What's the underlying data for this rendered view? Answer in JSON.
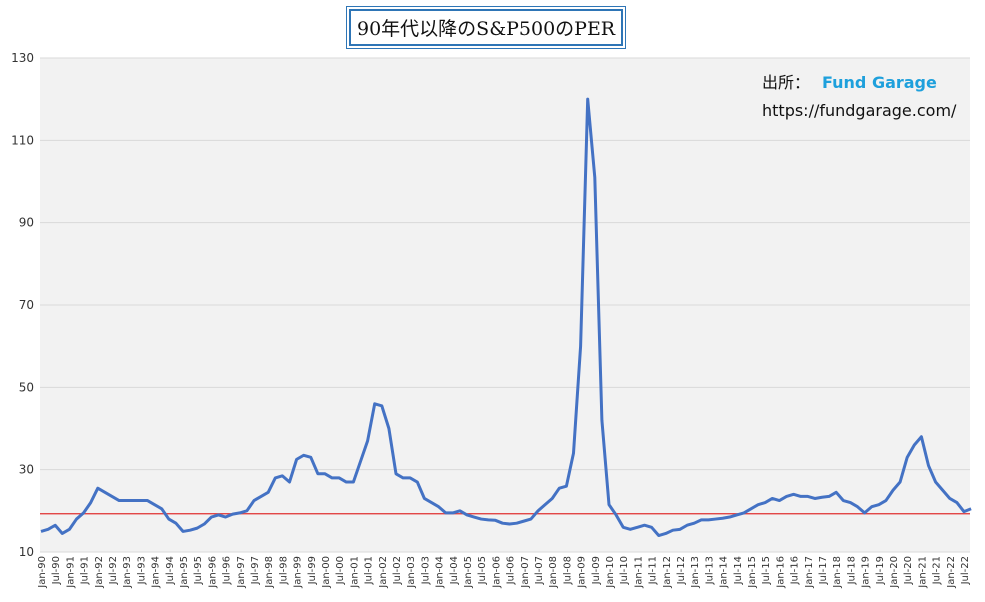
{
  "chart_data": {
    "type": "line",
    "title": "90年代以降のS&P500のPER",
    "annotation_source_label": "出所：",
    "annotation_source_name": "Fund Garage",
    "annotation_url": "https://fundgarage.com/",
    "categories": [
      "Jan-90",
      null,
      "Jul-90",
      null,
      "Jan-91",
      null,
      "Jul-91",
      null,
      "Jan-92",
      null,
      "Jul-92",
      null,
      "Jan-93",
      null,
      "Jul-93",
      null,
      "Jan-94",
      null,
      "Jul-94",
      null,
      "Jan-95",
      null,
      "Jul-95",
      null,
      "Jan-96",
      null,
      "Jul-96",
      null,
      "Jan-97",
      null,
      "Jul-97",
      null,
      "Jan-98",
      null,
      "Jul-98",
      null,
      "Jan-99",
      null,
      "Jul-99",
      null,
      "Jan-00",
      null,
      "Jul-00",
      null,
      "Jan-01",
      null,
      "Jul-01",
      null,
      "Jan-02",
      null,
      "Jul-02",
      null,
      "Jan-03",
      null,
      "Jul-03",
      null,
      "Jan-04",
      null,
      "Jul-04",
      null,
      "Jan-05",
      null,
      "Jul-05",
      null,
      "Jan-06",
      null,
      "Jul-06",
      null,
      "Jan-07",
      null,
      "Jul-07",
      null,
      "Jan-08",
      null,
      "Jul-08",
      null,
      "Jan-09",
      null,
      "Jul-09",
      null,
      "Jan-10",
      null,
      "Jul-10",
      null,
      "Jan-11",
      null,
      "Jul-11",
      null,
      "Jan-12",
      null,
      "Jul-12",
      null,
      "Jan-13",
      null,
      "Jul-13",
      null,
      "Jan-14",
      null,
      "Jul-14",
      null,
      "Jan-15",
      null,
      "Jul-15",
      null,
      "Jan-16",
      null,
      "Jul-16",
      null,
      "Jan-17",
      null,
      "Jul-17",
      null,
      "Jan-18",
      null,
      "Jul-18",
      null,
      "Jan-19",
      null,
      "Jul-19",
      null,
      "Jan-20",
      null,
      "Jul-20",
      null,
      "Jan-21",
      null,
      "Jul-21",
      null,
      "Jan-22",
      null,
      "Jul-22",
      null
    ],
    "series": [
      {
        "name": "PER",
        "color": "#4472c4",
        "values": [
          15,
          15.5,
          16.5,
          14.5,
          15.5,
          18,
          19.5,
          22,
          25.5,
          24.5,
          23.5,
          22.5,
          22.5,
          22.5,
          22.5,
          22.5,
          21.5,
          20.5,
          18,
          17,
          15,
          15.3,
          15.8,
          16.8,
          18.5,
          19,
          18.5,
          19.2,
          19.5,
          20,
          22.5,
          23.5,
          24.5,
          28,
          28.5,
          27,
          32.5,
          33.5,
          33,
          29,
          29,
          28,
          28,
          27,
          27,
          32,
          37,
          46,
          45.5,
          40,
          29,
          28,
          28,
          27,
          23,
          22,
          21,
          19.5,
          19.5,
          20,
          19,
          18.5,
          18,
          17.8,
          17.7,
          17,
          16.8,
          17,
          17.5,
          18,
          20,
          21.5,
          23,
          25.5,
          26,
          34,
          60,
          120,
          101,
          42,
          21.5,
          19,
          16,
          15.5,
          16,
          16.5,
          16,
          14,
          14.5,
          15.3,
          15.5,
          16.5,
          17,
          17.8,
          17.8,
          18,
          18.2,
          18.5,
          19,
          19.5,
          20.5,
          21.5,
          22,
          23,
          22.5,
          23.5,
          24,
          23.5,
          23.5,
          23,
          23.3,
          23.5,
          24.5,
          22.5,
          22,
          21,
          19.5,
          21,
          21.5,
          22.5,
          25,
          27,
          33,
          36,
          38,
          31,
          27,
          25,
          23,
          22,
          19.8,
          20.5
        ]
      }
    ],
    "reference_line": {
      "value": 19.3,
      "color": "#e03030"
    },
    "ylim": [
      10,
      130
    ],
    "yticks": [
      10,
      30,
      50,
      70,
      90,
      110,
      130
    ],
    "grid": true
  }
}
